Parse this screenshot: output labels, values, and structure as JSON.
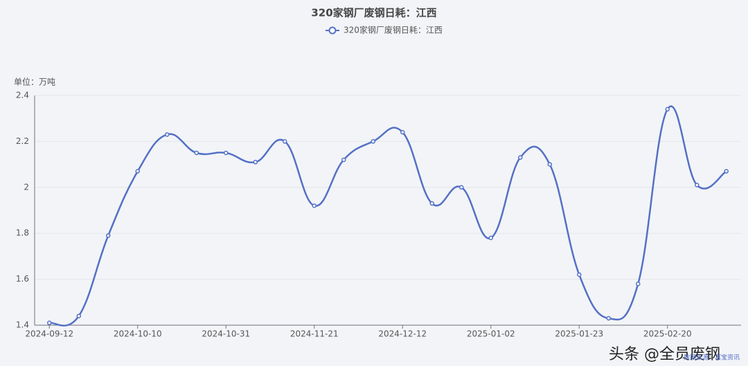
{
  "chart_data": {
    "type": "line",
    "title": "320家钢厂废钢日耗：江西",
    "y_label": "单位：万吨",
    "categories": [
      "2024-09-12",
      null,
      null,
      "2024-10-10",
      null,
      null,
      "2024-10-31",
      null,
      null,
      "2024-11-21",
      null,
      null,
      "2024-12-12",
      null,
      null,
      "2025-01-02",
      null,
      null,
      "2025-01-23",
      null,
      null,
      "2025-02-20",
      null,
      null
    ],
    "series": [
      {
        "name": "320家钢厂废钢日耗：江西",
        "color": "#5470c6",
        "values": [
          1.41,
          1.44,
          1.79,
          2.07,
          2.23,
          2.15,
          2.15,
          2.11,
          2.2,
          1.92,
          2.12,
          2.2,
          2.24,
          1.93,
          2.0,
          1.78,
          2.13,
          2.1,
          1.62,
          1.43,
          1.58,
          2.34,
          2.01,
          2.07
        ]
      }
    ],
    "ylim": [
      1.4,
      2.4
    ],
    "yticks": [
      1.4,
      1.6,
      1.8,
      2,
      2.2,
      2.4
    ],
    "grid": true,
    "source": "数据来源：富宝资讯",
    "watermark": "头条 @全员废钢"
  }
}
